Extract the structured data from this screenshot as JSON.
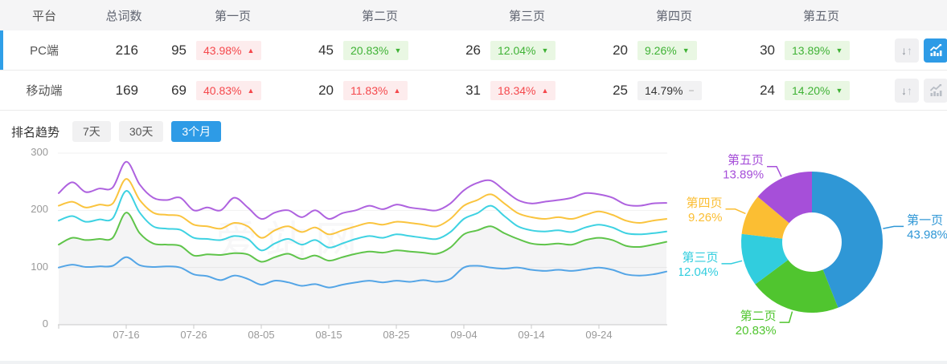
{
  "table": {
    "headers": {
      "platform": "平台",
      "total": "总词数",
      "p1": "第一页",
      "p2": "第二页",
      "p3": "第三页",
      "p4": "第四页",
      "p5": "第五页"
    },
    "rows": [
      {
        "platform": "PC端",
        "total": "216",
        "row_state": "selected",
        "chart_btn_state": "active",
        "pages": [
          {
            "count": "95",
            "pct": "43.98%",
            "arrow": "▲",
            "dir": "up"
          },
          {
            "count": "45",
            "pct": "20.83%",
            "arrow": "▼",
            "dir": "down"
          },
          {
            "count": "26",
            "pct": "12.04%",
            "arrow": "▼",
            "dir": "down"
          },
          {
            "count": "20",
            "pct": "9.26%",
            "arrow": "▼",
            "dir": "down"
          },
          {
            "count": "30",
            "pct": "13.89%",
            "arrow": "▼",
            "dir": "down"
          }
        ]
      },
      {
        "platform": "移动端",
        "total": "169",
        "row_state": "",
        "chart_btn_state": "",
        "pages": [
          {
            "count": "69",
            "pct": "40.83%",
            "arrow": "▲",
            "dir": "up"
          },
          {
            "count": "20",
            "pct": "11.83%",
            "arrow": "▲",
            "dir": "up"
          },
          {
            "count": "31",
            "pct": "18.34%",
            "arrow": "▲",
            "dir": "up"
          },
          {
            "count": "25",
            "pct": "14.79%",
            "arrow": "−",
            "dir": "flat"
          },
          {
            "count": "24",
            "pct": "14.20%",
            "arrow": "▼",
            "dir": "down"
          }
        ]
      }
    ],
    "icons": {
      "sort_down": "↓",
      "sort_up": "↑"
    }
  },
  "trend_section": {
    "title": "排名趋势",
    "tabs": [
      {
        "label": "7天",
        "state": ""
      },
      {
        "label": "30天",
        "state": ""
      },
      {
        "label": "3个月",
        "state": "active"
      }
    ]
  },
  "watermark": "爱站网",
  "colors": {
    "accent_blue": "#2e9be6",
    "selected_row_indicator": "#2f9fe8",
    "badge_up_text": "#f5484c",
    "badge_up_bg": "#fdeced",
    "badge_down_text": "#3fb235",
    "badge_down_bg": "#e9f7e3",
    "badge_flat_bg": "#f2f2f3",
    "header_bg": "#f5f5f6"
  },
  "chart_data": [
    {
      "type": "line",
      "title": "排名趋势 3个月",
      "values_are_cumulative": true,
      "x_day_span": [
        0,
        90
      ],
      "sample_step_days": 2,
      "x_tick_days": [
        10,
        20,
        30,
        40,
        50,
        60,
        70,
        80
      ],
      "x_tick_labels": [
        "07-16",
        "07-26",
        "08-05",
        "08-15",
        "08-25",
        "09-04",
        "09-14",
        "09-24"
      ],
      "ylim": [
        0,
        300
      ],
      "y_ticks": [
        0,
        100,
        200,
        300
      ],
      "grid": true,
      "area_fill_under": "第二页",
      "area_color": "#f4f4f5",
      "series": [
        {
          "name": "第一页",
          "color": "#54a5e6",
          "values": [
            100,
            105,
            101,
            102,
            103,
            118,
            104,
            101,
            102,
            100,
            88,
            85,
            78,
            86,
            80,
            70,
            77,
            74,
            68,
            71,
            65,
            70,
            74,
            77,
            74,
            77,
            75,
            78,
            75,
            80,
            100,
            103,
            100,
            98,
            100,
            96,
            94,
            96,
            94,
            97,
            100,
            96,
            88,
            86,
            88,
            93
          ]
        },
        {
          "name": "第二页",
          "color": "#5fc44a",
          "values": [
            140,
            152,
            148,
            150,
            152,
            196,
            160,
            142,
            140,
            138,
            121,
            123,
            122,
            125,
            123,
            110,
            118,
            124,
            115,
            121,
            112,
            118,
            124,
            128,
            126,
            130,
            128,
            126,
            124,
            135,
            158,
            165,
            172,
            160,
            150,
            142,
            140,
            142,
            140,
            148,
            152,
            148,
            138,
            136,
            140,
            145
          ]
        },
        {
          "name": "第三页",
          "color": "#3ed2e2",
          "values": [
            182,
            190,
            180,
            184,
            186,
            234,
            196,
            172,
            168,
            166,
            152,
            150,
            148,
            155,
            150,
            130,
            142,
            150,
            140,
            148,
            135,
            142,
            150,
            155,
            152,
            158,
            155,
            152,
            150,
            162,
            185,
            195,
            208,
            190,
            172,
            165,
            163,
            165,
            162,
            170,
            175,
            170,
            160,
            158,
            160,
            163
          ]
        },
        {
          "name": "第四页",
          "color": "#fac43e",
          "values": [
            208,
            215,
            205,
            210,
            212,
            255,
            218,
            196,
            192,
            190,
            175,
            172,
            168,
            178,
            172,
            152,
            165,
            172,
            162,
            170,
            158,
            165,
            172,
            178,
            175,
            180,
            178,
            175,
            172,
            185,
            208,
            218,
            228,
            212,
            195,
            188,
            185,
            188,
            185,
            192,
            198,
            192,
            182,
            178,
            182,
            185
          ]
        },
        {
          "name": "第五页",
          "color": "#ae62df",
          "values": [
            230,
            249,
            232,
            238,
            240,
            285,
            245,
            222,
            218,
            222,
            200,
            205,
            200,
            222,
            205,
            185,
            196,
            200,
            188,
            200,
            185,
            195,
            200,
            208,
            202,
            210,
            205,
            202,
            200,
            212,
            235,
            248,
            252,
            235,
            218,
            212,
            215,
            218,
            222,
            230,
            228,
            222,
            210,
            208,
            212,
            213
          ]
        }
      ]
    },
    {
      "type": "pie",
      "donut": true,
      "start_angle": "top",
      "direction": "clockwise",
      "labels": [
        "第一页",
        "第二页",
        "第三页",
        "第四页",
        "第五页"
      ],
      "values": [
        43.98,
        20.83,
        12.04,
        9.26,
        13.89
      ],
      "value_labels": [
        "43.98%",
        "20.83%",
        "12.04%",
        "9.26%",
        "13.89%"
      ],
      "unit": "%",
      "colors": [
        "#2f97d6",
        "#50c52f",
        "#31cdde",
        "#fbbe33",
        "#a64fd9"
      ]
    }
  ]
}
